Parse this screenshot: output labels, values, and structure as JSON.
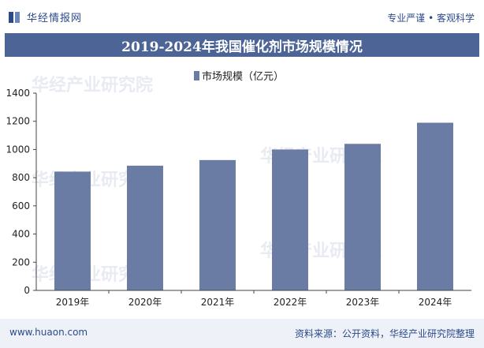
{
  "header": {
    "brand": "华经情报网",
    "tagline": "专业严谨 • 客观科学"
  },
  "chart_data": {
    "type": "bar",
    "title": "2019-2024年我国催化剂市场规模情况",
    "categories": [
      "2019年",
      "2020年",
      "2021年",
      "2022年",
      "2023年",
      "2024年"
    ],
    "series": [
      {
        "name": "市场规模（亿元）",
        "values": [
          843,
          885,
          925,
          1000,
          1040,
          1190
        ]
      }
    ],
    "ylim": [
      0,
      1400
    ],
    "yticks": [
      0,
      200,
      400,
      600,
      800,
      1000,
      1200,
      1400
    ],
    "legend": "top-center",
    "bar_color": "#6a7ba4",
    "grid": false
  },
  "footer": {
    "website": "www.huaon.com",
    "source": "资料来源：公开资料，华经产业研究院整理"
  }
}
